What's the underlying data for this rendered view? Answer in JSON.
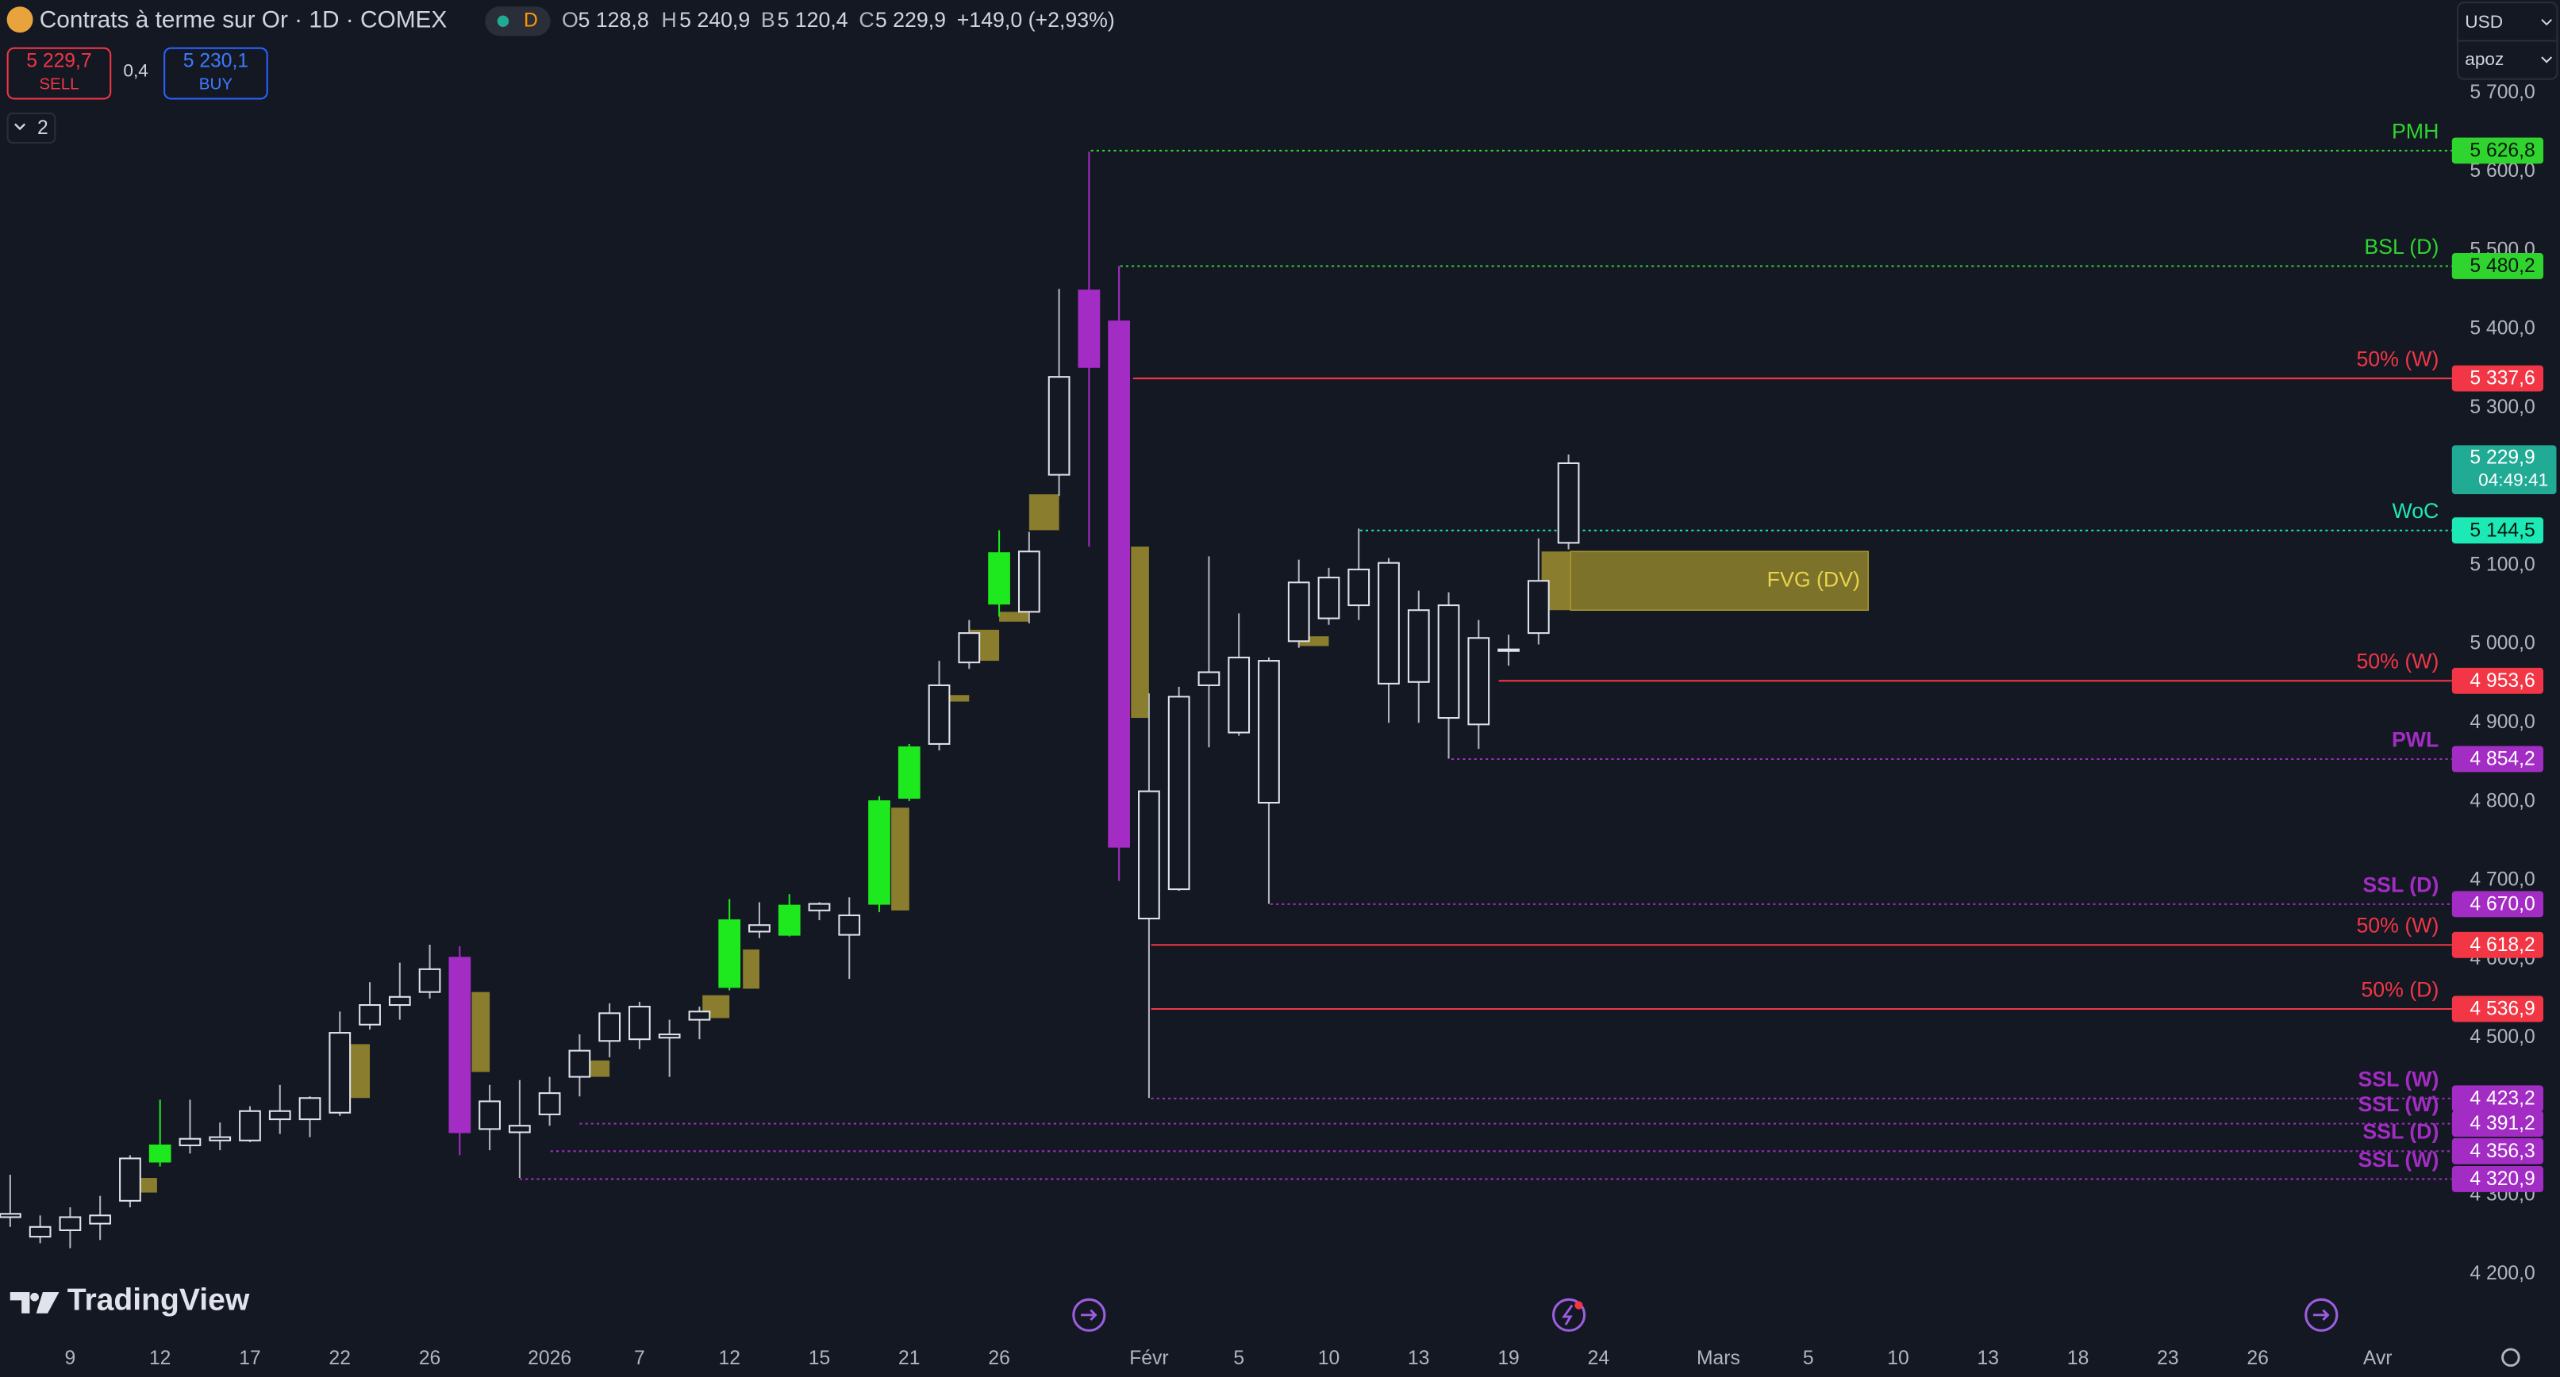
{
  "header": {
    "title": "Contrats à terme sur Or · 1D · COMEX",
    "badge": "D",
    "ohlc": [
      {
        "key": "O",
        "value": "5 128,8"
      },
      {
        "key": "H",
        "value": "5 240,9"
      },
      {
        "key": "B",
        "value": "5 120,4"
      },
      {
        "key": "C",
        "value": "5 229,9"
      }
    ],
    "change": "+149,0 (+2,93%)",
    "sell": {
      "price": "5 229,7",
      "label": "SELL"
    },
    "spread": "0,4",
    "buy": {
      "price": "5 230,1",
      "label": "BUY"
    },
    "indicators": "2",
    "currency": "USD",
    "account": "apoz",
    "branding": "TradingView"
  },
  "chart_data": {
    "type": "candlestick",
    "xlim": [
      -0.33,
      81.37
    ],
    "ylim": [
      4123.4,
      5818.1
    ],
    "xticks": [
      {
        "value": 2,
        "label": "9"
      },
      {
        "value": 5,
        "label": "12"
      },
      {
        "value": 8,
        "label": "17"
      },
      {
        "value": 11,
        "label": "22"
      },
      {
        "value": 14,
        "label": "26"
      },
      {
        "value": 18,
        "label": "2026"
      },
      {
        "value": 21,
        "label": "7"
      },
      {
        "value": 24,
        "label": "12"
      },
      {
        "value": 27,
        "label": "15"
      },
      {
        "value": 30,
        "label": "21"
      },
      {
        "value": 33,
        "label": "26"
      },
      {
        "value": 38,
        "label": "Févr"
      },
      {
        "value": 41,
        "label": "5"
      },
      {
        "value": 44,
        "label": "10"
      },
      {
        "value": 47,
        "label": "13"
      },
      {
        "value": 50,
        "label": "19"
      },
      {
        "value": 53,
        "label": "24"
      },
      {
        "value": 57,
        "label": "Mars"
      },
      {
        "value": 60,
        "label": "5"
      },
      {
        "value": 63,
        "label": "10"
      },
      {
        "value": 66,
        "label": "13"
      },
      {
        "value": 69,
        "label": "18"
      },
      {
        "value": 72,
        "label": "23"
      },
      {
        "value": 75,
        "label": "26"
      },
      {
        "value": 79,
        "label": "Avr"
      }
    ],
    "yticks": [
      {
        "value": 5700,
        "label": "5 700,0"
      },
      {
        "value": 5600,
        "label": "5 600,0"
      },
      {
        "value": 5500,
        "label": "5 500,0"
      },
      {
        "value": 5400,
        "label": "5 400,0"
      },
      {
        "value": 5300,
        "label": "5 300,0"
      },
      {
        "value": 5100,
        "label": "5 100,0"
      },
      {
        "value": 5000,
        "label": "5 000,0"
      },
      {
        "value": 4900,
        "label": "4 900,0"
      },
      {
        "value": 4800,
        "label": "4 800,0"
      },
      {
        "value": 4700,
        "label": "4 700,0"
      },
      {
        "value": 4600,
        "label": "4 600,0"
      },
      {
        "value": 4500,
        "label": "4 500,0"
      },
      {
        "value": 4300,
        "label": "4 300,0"
      },
      {
        "value": 4200,
        "label": "4 200,0"
      }
    ],
    "candle_color": "#e0e3eb",
    "open": [
      4272.5,
      4247.7,
      4255.9,
      4264.3,
      4293.3,
      4343.0,
      4363.7,
      4369.9,
      4369.9,
      4396.8,
      4396.8,
      4405.2,
      4517.0,
      4541.9,
      4558.4,
      4602.0,
      4384.4,
      4380.3,
      4403.0,
      4450.7,
      4496.3,
      4498.4,
      4500.4,
      4523.2,
      4564.7,
      4635.1,
      4631.0,
      4662.0,
      4655.8,
      4670.3,
      4805.0,
      4873.4,
      4976.9,
      5051.5,
      5041.2,
      5215.2,
      5449.3,
      5410.0,
      4813.3,
      4688.9,
      4947.9,
      4887.9,
      4979.0,
      5003.9,
      5032.9,
      5049.5,
      5103.3,
      4952.1,
      5049.5,
      4898.2,
      4991.5,
      5014.2,
      5128.8
    ],
    "high": [
      4326.4,
      4274.7,
      4285.0,
      4299.5,
      4351.3,
      4421.7,
      4421.7,
      4392.7,
      4413.4,
      4440.4,
      4425.9,
      4533.6,
      4570.9,
      4595.7,
      4618.5,
      4616.5,
      4440.4,
      4446.6,
      4450.7,
      4504.6,
      4544.0,
      4546.0,
      4523.2,
      4539.8,
      4676.5,
      4672.4,
      4682.7,
      4672.4,
      4678.6,
      4807.1,
      4873.4,
      4979.0,
      5030.8,
      5144.8,
      5142.7,
      5451.4,
      5625.4,
      5480.4,
      4937.6,
      4945.9,
      5111.6,
      5039.1,
      4983.2,
      5107.4,
      5097.1,
      5146.9,
      5109.5,
      5068.1,
      5066.0,
      5030.8,
      5012.2,
      5134.4,
      5240.9
    ],
    "low": [
      4260.1,
      4239.4,
      4233.1,
      4243.5,
      4285.0,
      4336.8,
      4353.3,
      4357.5,
      4367.9,
      4378.2,
      4374.1,
      4401.0,
      4510.8,
      4523.2,
      4550.2,
      4351.3,
      4357.5,
      4322.3,
      4388.6,
      4425.9,
      4475.6,
      4485.9,
      4450.7,
      4498.4,
      4560.5,
      4626.8,
      4628.9,
      4649.6,
      4575.0,
      4659.9,
      4800.8,
      4865.1,
      4968.7,
      5035.0,
      5026.7,
      5188.3,
      5124.0,
      4699.3,
      4423.8,
      4686.9,
      4869.2,
      4883.7,
      4670.3,
      4995.6,
      5024.6,
      5030.8,
      4900.3,
      4900.3,
      4854.7,
      4867.1,
      4972.8,
      4999.7,
      5120.4
    ],
    "close": [
      4276.7,
      4260.1,
      4272.5,
      4274.7,
      4347.1,
      4363.7,
      4372.0,
      4374.1,
      4407.2,
      4407.2,
      4423.8,
      4506.6,
      4541.9,
      4552.2,
      4587.4,
      4380.3,
      4419.6,
      4388.6,
      4430.0,
      4483.9,
      4531.5,
      4539.8,
      4504.6,
      4533.6,
      4649.6,
      4643.4,
      4668.2,
      4670.3,
      4631.0,
      4800.8,
      4869.2,
      4947.9,
      5014.2,
      5115.8,
      5117.8,
      5339.5,
      5352.0,
      4742.8,
      4651.7,
      4933.4,
      4964.5,
      4983.2,
      4798.8,
      5078.5,
      5084.7,
      5095.0,
      4950.0,
      5043.3,
      4906.5,
      5008.0,
      4993.5,
      5080.5,
      5229.9
    ],
    "colors": [
      "#e0e3eb",
      "#e0e3eb",
      "#e0e3eb",
      "#e0e3eb",
      "#e0e3eb",
      "#1ee81e",
      "#e0e3eb",
      "#e0e3eb",
      "#e0e3eb",
      "#e0e3eb",
      "#e0e3eb",
      "#e0e3eb",
      "#e0e3eb",
      "#e0e3eb",
      "#e0e3eb",
      "#a32cc4",
      "#e0e3eb",
      "#e0e3eb",
      "#e0e3eb",
      "#e0e3eb",
      "#e0e3eb",
      "#e0e3eb",
      "#e0e3eb",
      "#e0e3eb",
      "#1ee81e",
      "#e0e3eb",
      "#1ee81e",
      "#e0e3eb",
      "#e0e3eb",
      "#1ee81e",
      "#1ee81e",
      "#e0e3eb",
      "#e0e3eb",
      "#1ee81e",
      "#e0e3eb",
      "#e0e3eb",
      "#a32cc4",
      "#a32cc4",
      "#e0e3eb",
      "#e0e3eb",
      "#e0e3eb",
      "#e0e3eb",
      "#e0e3eb",
      "#e0e3eb",
      "#e0e3eb",
      "#e0e3eb",
      "#e0e3eb",
      "#e0e3eb",
      "#e0e3eb",
      "#e0e3eb",
      "#e0e3eb",
      "#e0e3eb",
      "#e0e3eb"
    ],
    "zone_color": "#8a7d2e",
    "zones": [
      {
        "x0": 4.0,
        "x1": 4.9,
        "top": 4322.3,
        "bottom": 4303.7
      },
      {
        "x0": 10.95,
        "x1": 12.0,
        "top": 4492.2,
        "bottom": 4423.8
      },
      {
        "x0": 15.4,
        "x1": 16.0,
        "top": 4558.4,
        "bottom": 4456.9
      },
      {
        "x0": 18.95,
        "x1": 20.0,
        "top": 4471.4,
        "bottom": 4450.7
      },
      {
        "x0": 23.1,
        "x1": 24.0,
        "top": 4554.3,
        "bottom": 4525.3
      },
      {
        "x0": 24.45,
        "x1": 25.0,
        "top": 4612.4,
        "bottom": 4562.6
      },
      {
        "x0": 29.4,
        "x1": 30.0,
        "top": 4792.5,
        "bottom": 4662.0
      },
      {
        "x0": 31.0,
        "x1": 32.0,
        "top": 4935.5,
        "bottom": 4927.2
      },
      {
        "x0": 32.0,
        "x1": 33.0,
        "top": 5018.4,
        "bottom": 4979.0
      },
      {
        "x0": 33.0,
        "x1": 34.0,
        "top": 5041.2,
        "bottom": 5028.7
      },
      {
        "x0": 34.0,
        "x1": 35.0,
        "top": 5190.4,
        "bottom": 5144.8
      },
      {
        "x0": 37.4,
        "x1": 38.0,
        "top": 5124.0,
        "bottom": 4906.5
      },
      {
        "x0": 43.0,
        "x1": 44.0,
        "top": 5010.1,
        "bottom": 4997.7
      },
      {
        "x0": 51.1,
        "x1": 52.07,
        "top": 5117.8,
        "bottom": 5043.3
      }
    ],
    "fvg": {
      "label": "FVG (DV)",
      "x0": 52.07,
      "x1": 62.0,
      "top": 5117.8,
      "bottom": 5043.3,
      "color": "#7d722a",
      "text_color": "#e8d44d"
    },
    "levels": [
      {
        "label": "PMH",
        "price": {
          "value": 5626.8,
          "label": "5 626,8"
        },
        "start": 36.06,
        "color": "#2fd42f",
        "style": "dotted"
      },
      {
        "label": "BSL (D)",
        "price": {
          "value": 5480.2,
          "label": "5 480,2"
        },
        "start": 37.04,
        "color": "#2fd42f",
        "style": "dotted"
      },
      {
        "label": "50% (W)",
        "price": {
          "value": 5337.6,
          "label": "5 337,6"
        },
        "start": 37.47,
        "color": "#f23645",
        "style": "solid"
      },
      {
        "label": "WoC",
        "price": {
          "value": 5144.5,
          "label": "5 144,5"
        },
        "start": 45.04,
        "color": "#1de9b6",
        "style": "dotted"
      },
      {
        "label": "50% (W)",
        "price": {
          "value": 4953.6,
          "label": "4 953,6"
        },
        "start": 49.67,
        "color": "#f23645",
        "style": "solid"
      },
      {
        "label": "PWL",
        "price": {
          "value": 4854.2,
          "label": "4 854,2"
        },
        "start": 48.09,
        "color": "#a32cc4",
        "style": "dotted"
      },
      {
        "label": "SSL (D)",
        "price": {
          "value": 4670.0,
          "label": "4 670,0"
        },
        "start": 42.05,
        "color": "#a32cc4",
        "style": "dotted"
      },
      {
        "label": "50% (W)",
        "price": {
          "value": 4618.2,
          "label": "4 618,2"
        },
        "start": 38.07,
        "color": "#f23645",
        "style": "solid"
      },
      {
        "label": "50% (D)",
        "price": {
          "value": 4536.9,
          "label": "4 536,9"
        },
        "start": 38.07,
        "color": "#f23645",
        "style": "solid"
      },
      {
        "label": "SSL (W)",
        "price": {
          "value": 4423.2,
          "label": "4 423,2"
        },
        "start": 38.07,
        "color": "#a32cc4",
        "style": "dotted"
      },
      {
        "label": "SSL (W)",
        "price": {
          "value": 4391.2,
          "label": "4 391,2"
        },
        "start": 19.0,
        "color": "#a32cc4",
        "style": "dotted"
      },
      {
        "label": "SSL (D)",
        "price": {
          "value": 4356.3,
          "label": "4 356,3"
        },
        "start": 18.03,
        "color": "#a32cc4",
        "style": "dotted"
      },
      {
        "label": "SSL (W)",
        "price": {
          "value": 4320.9,
          "label": "4 320,9"
        },
        "start": 17.0,
        "color": "#a32cc4",
        "style": "dotted"
      }
    ],
    "last_price": {
      "value": 5229.9,
      "label": "5 229,9",
      "countdown": "04:49:41",
      "color": "#22ab94"
    }
  }
}
